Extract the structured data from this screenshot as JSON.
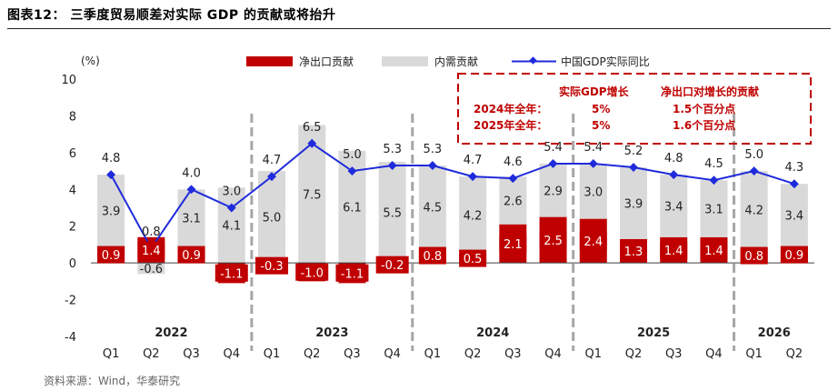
{
  "figure_title": "图表12：  三季度贸易顺差对实际 GDP 的贡献或将抬升",
  "source": "资料来源：Wind，华泰研究",
  "colors": {
    "net_export": "#C00000",
    "domestic": "#D9D9D9",
    "gdp_line": "#1F2BDB",
    "divider": "#A6A6A6",
    "annotation": "#C00000"
  },
  "chart_data": {
    "type": "bar",
    "ylabel": "(%)",
    "ylim": [
      -4,
      10
    ],
    "yticks": [
      -4,
      -2,
      0,
      2,
      4,
      6,
      8,
      10
    ],
    "categories": [
      "Q1",
      "Q2",
      "Q3",
      "Q4",
      "Q1",
      "Q2",
      "Q3",
      "Q4",
      "Q1",
      "Q2",
      "Q3",
      "Q4",
      "Q1",
      "Q2",
      "Q3",
      "Q4",
      "Q1",
      "Q2"
    ],
    "years": [
      {
        "label": "2022",
        "start": 0,
        "end": 3
      },
      {
        "label": "2023",
        "start": 4,
        "end": 7
      },
      {
        "label": "2024",
        "start": 8,
        "end": 11
      },
      {
        "label": "2025",
        "start": 12,
        "end": 15
      },
      {
        "label": "2026",
        "start": 16,
        "end": 17
      }
    ],
    "legend_position": "top",
    "series": [
      {
        "name": "净出口贡献",
        "kind": "bar",
        "values": [
          0.9,
          1.4,
          0.9,
          -1.1,
          -0.3,
          -1.0,
          -1.1,
          -0.2,
          0.8,
          0.5,
          2.1,
          2.5,
          2.4,
          1.3,
          1.4,
          1.4,
          0.8,
          0.9
        ]
      },
      {
        "name": "内需贡献",
        "kind": "bar",
        "values": [
          3.9,
          -0.6,
          3.1,
          4.1,
          5.0,
          7.5,
          6.1,
          5.5,
          4.5,
          4.2,
          2.6,
          2.9,
          3.0,
          3.9,
          3.4,
          3.1,
          4.2,
          3.4
        ]
      },
      {
        "name": "中国GDP实际同比",
        "kind": "line",
        "values": [
          4.8,
          0.8,
          4.0,
          3.0,
          4.7,
          6.5,
          5.0,
          5.3,
          5.3,
          4.7,
          4.6,
          5.4,
          5.4,
          5.2,
          4.8,
          4.5,
          5.0,
          4.3
        ]
      }
    ],
    "annotation_box": {
      "header": [
        "实际GDP增长",
        "净出口对增长的贡献"
      ],
      "rows": [
        {
          "label": "2024年全年：",
          "gdp": "5%",
          "net_export": "1.5个百分点"
        },
        {
          "label": "2025年全年：",
          "gdp": "5%",
          "net_export": "1.6个百分点"
        }
      ]
    }
  }
}
